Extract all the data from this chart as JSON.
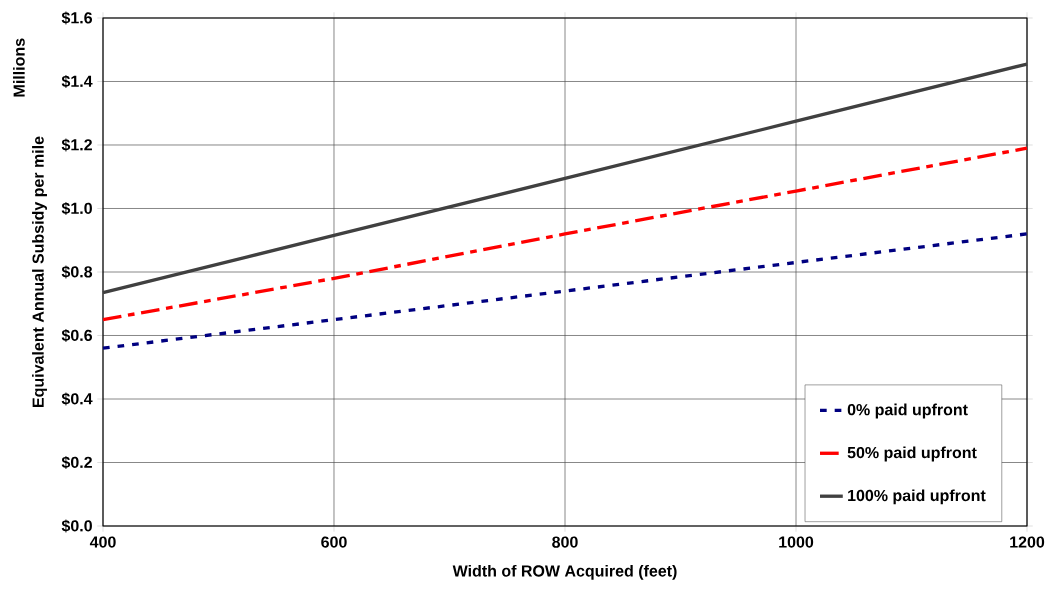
{
  "chart_data": {
    "type": "line",
    "xlabel": "Width of ROW Acquired (feet)",
    "ylabel": "Equivalent Annual Subsidy per mile",
    "annotations": [
      "Millions"
    ],
    "x": [
      400,
      600,
      800,
      1000,
      1200
    ],
    "series": [
      {
        "name": "0% paid upfront",
        "color": "#000080",
        "line_style": "dotted",
        "values": [
          0.56,
          0.65,
          0.74,
          0.83,
          0.92
        ]
      },
      {
        "name": "50% paid upfront",
        "color": "#ff0000",
        "line_style": "dashed",
        "values": [
          0.65,
          0.78,
          0.92,
          1.055,
          1.19
        ]
      },
      {
        "name": "100% paid upfront",
        "color": "#404040",
        "line_style": "solid",
        "values": [
          0.735,
          0.915,
          1.095,
          1.275,
          1.455
        ]
      }
    ],
    "xlim": [
      400,
      1200
    ],
    "xticks": [
      400,
      600,
      800,
      1000,
      1200
    ],
    "ylim": [
      0,
      1.6
    ],
    "yticks": [
      {
        "value": 0,
        "label": "$0.0"
      },
      {
        "value": 0.2,
        "label": "$0.2"
      },
      {
        "value": 0.4,
        "label": "$0.4"
      },
      {
        "value": 0.6,
        "label": "$0.6"
      },
      {
        "value": 0.8,
        "label": "$0.8"
      },
      {
        "value": 1.0,
        "label": "$1.0"
      },
      {
        "value": 1.2,
        "label": "$1.2"
      },
      {
        "value": 1.4,
        "label": "$1.4"
      },
      {
        "value": 1.6,
        "label": "$1.6"
      }
    ],
    "grid": true,
    "legend": "bottom right",
    "marker": "none"
  }
}
